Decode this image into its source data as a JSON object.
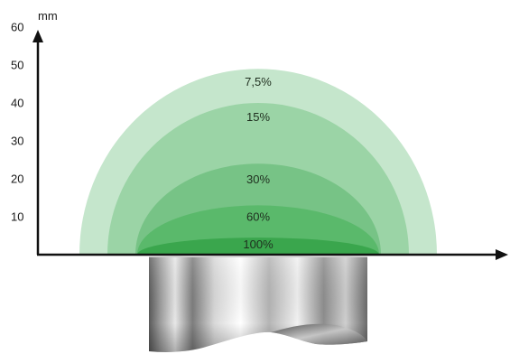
{
  "chart_data": {
    "type": "area",
    "y_unit": "mm",
    "y_range": [
      0,
      60
    ],
    "y_ticks": [
      "10",
      "20",
      "30",
      "40",
      "50",
      "60"
    ],
    "grid": false,
    "zones": [
      {
        "label": "7,5%",
        "height": 49,
        "color": "#c5e6cc"
      },
      {
        "label": "15%",
        "height": 40,
        "color": "#9bd4a6"
      },
      {
        "label": "30%",
        "height": 24,
        "color": "#77c386"
      },
      {
        "label": "60%",
        "height": 13,
        "color": "#5ab96b"
      },
      {
        "label": "100%",
        "height": 4.5,
        "color": "#3aa64d"
      }
    ]
  }
}
